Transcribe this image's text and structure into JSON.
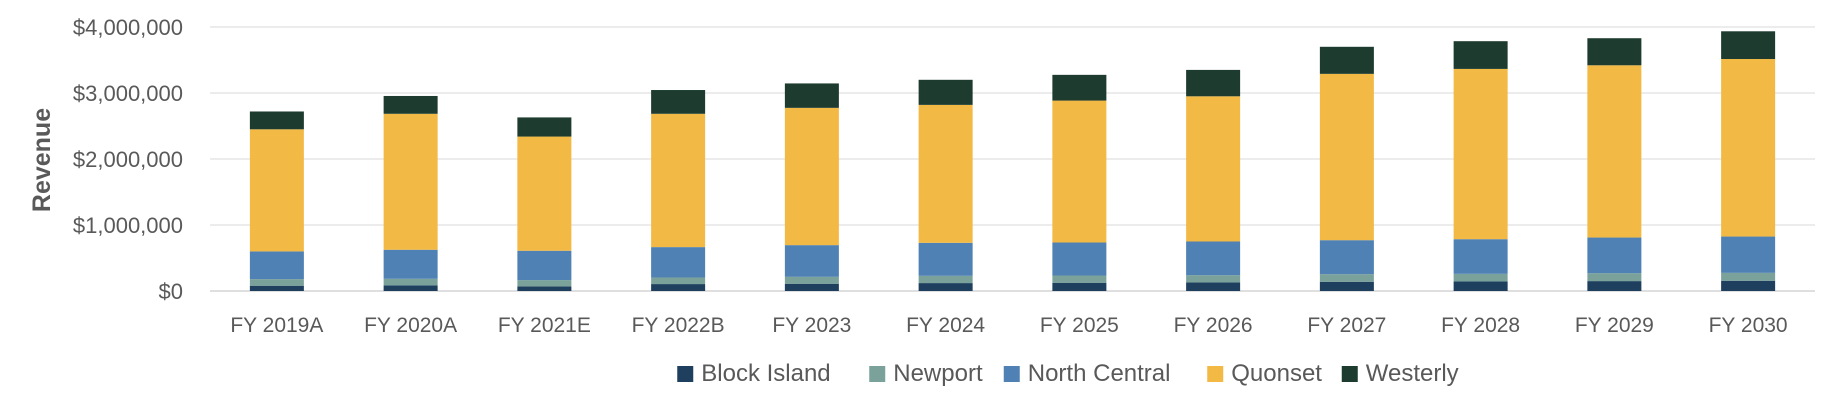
{
  "chart_data": {
    "type": "bar",
    "stacked": true,
    "title": "",
    "xlabel": "",
    "ylabel": "Revenue",
    "ylim": [
      0,
      4000000
    ],
    "yticks": [
      0,
      1000000,
      2000000,
      3000000,
      4000000
    ],
    "ytick_labels": [
      "$0",
      "$1,000,000",
      "$2,000,000",
      "$3,000,000",
      "$4,000,000"
    ],
    "grid": true,
    "legend_position": "bottom",
    "categories": [
      "FY 2019A",
      "FY 2020A",
      "FY 2021E",
      "FY 2022B",
      "FY 2023",
      "FY 2024",
      "FY 2025",
      "FY 2026",
      "FY 2027",
      "FY 2028",
      "FY 2029",
      "FY 2030"
    ],
    "series": [
      {
        "name": "Block Island",
        "color": "#1f3f5f",
        "values": [
          80000,
          85000,
          70000,
          105000,
          110000,
          120000,
          125000,
          130000,
          140000,
          145000,
          150000,
          155000
        ]
      },
      {
        "name": "Newport",
        "color": "#7aa29a",
        "values": [
          100000,
          100000,
          95000,
          100000,
          105000,
          110000,
          110000,
          110000,
          115000,
          115000,
          120000,
          120000
        ]
      },
      {
        "name": "North Central",
        "color": "#4f81b4",
        "values": [
          420000,
          440000,
          445000,
          460000,
          480000,
          500000,
          500000,
          510000,
          515000,
          525000,
          540000,
          550000
        ]
      },
      {
        "name": "Quonset",
        "color": "#f2b944",
        "values": [
          1850000,
          2060000,
          1730000,
          2020000,
          2080000,
          2090000,
          2150000,
          2200000,
          2520000,
          2580000,
          2610000,
          2690000
        ]
      },
      {
        "name": "Westerly",
        "color": "#1d3b2f",
        "values": [
          270000,
          270000,
          290000,
          360000,
          370000,
          380000,
          390000,
          400000,
          410000,
          420000,
          410000,
          420000
        ]
      }
    ]
  }
}
